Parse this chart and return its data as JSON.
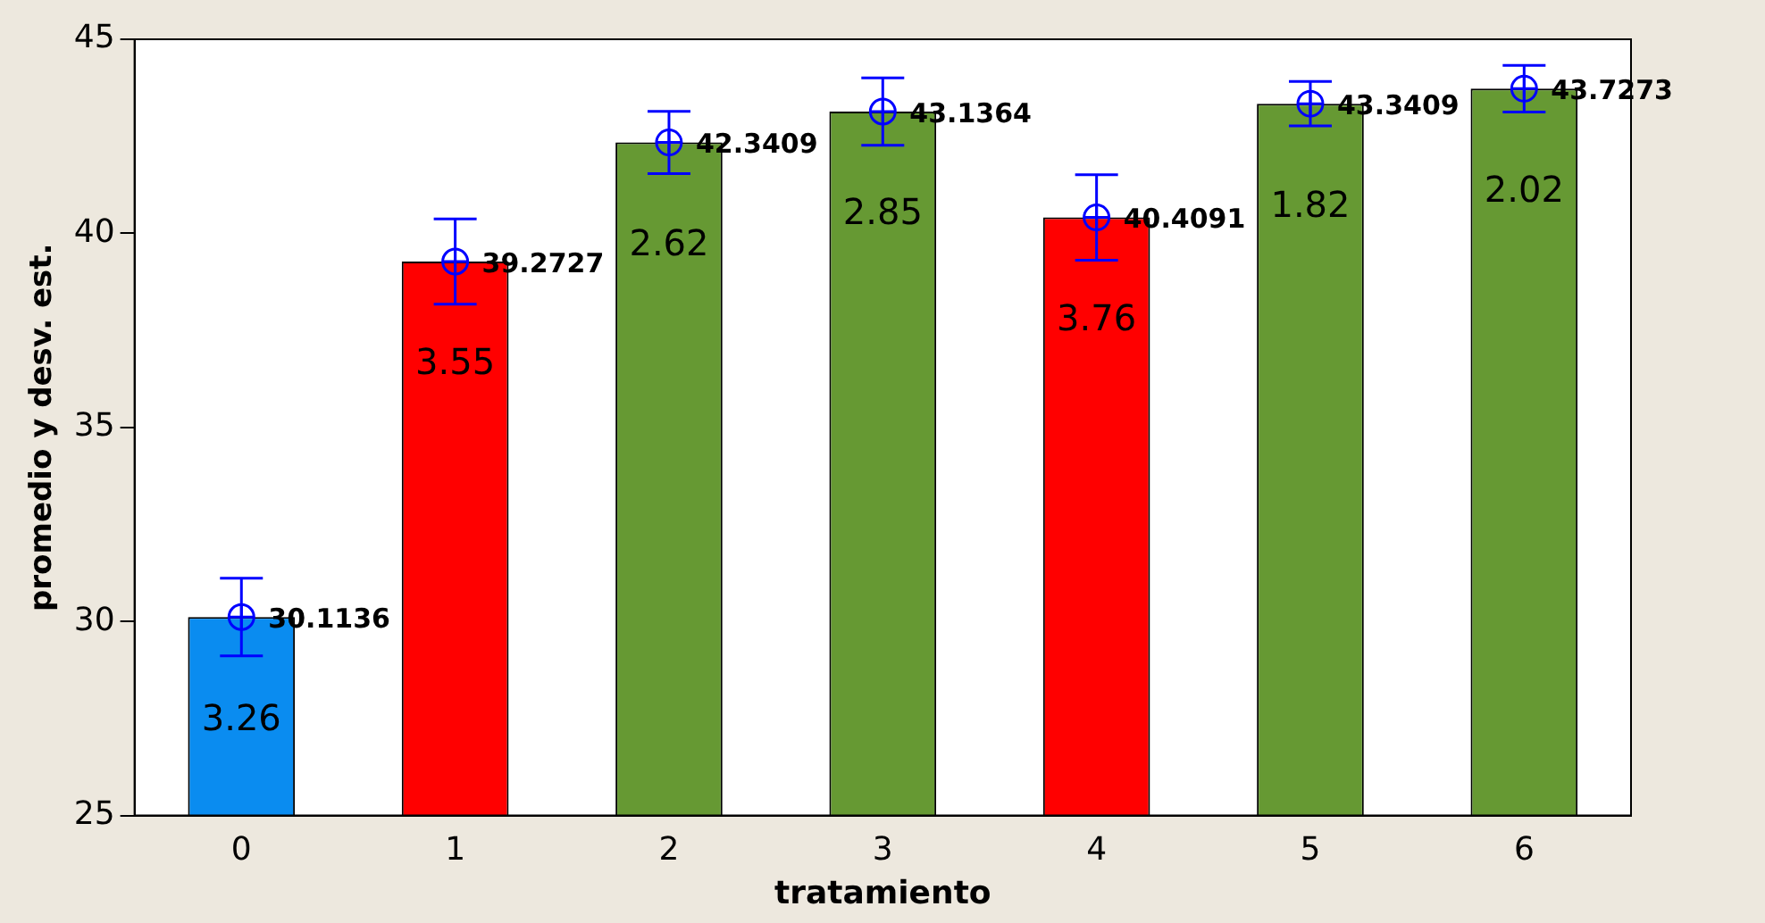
{
  "chart_data": {
    "type": "bar",
    "xlabel": "tratamiento",
    "ylabel": "promedio y desv. est.",
    "categories": [
      "0",
      "1",
      "2",
      "3",
      "4",
      "5",
      "6"
    ],
    "ylim": [
      25,
      45
    ],
    "yticks": [
      25,
      30,
      35,
      40,
      45
    ],
    "grid": false,
    "legend": false,
    "marker": "circle",
    "series": [
      {
        "colors": [
          "#0a8cf0",
          "#ff0000",
          "#669933",
          "#669933",
          "#ff0000",
          "#669933",
          "#669933"
        ],
        "values": [
          30.1136,
          39.2727,
          42.3409,
          43.1364,
          40.4091,
          43.3409,
          43.7273
        ]
      },
      {
        "type": "scatter",
        "color": "#0000ff",
        "x": [
          "0",
          "1",
          "2",
          "3",
          "4",
          "5",
          "6"
        ],
        "values": [
          30.1136,
          39.2727,
          42.3409,
          43.1364,
          40.4091,
          43.3409,
          43.7273
        ],
        "errors": [
          1.0,
          1.1,
          0.8,
          0.87,
          1.1,
          0.57,
          0.6
        ],
        "value_labels": [
          "30.1136",
          "39.2727",
          "42.3409",
          "43.1364",
          "40.4091",
          "43.3409",
          "43.7273"
        ]
      }
    ],
    "annotations": [
      "3.26",
      "3.55",
      "2.62",
      "2.85",
      "3.76",
      "1.82",
      "2.02"
    ]
  }
}
